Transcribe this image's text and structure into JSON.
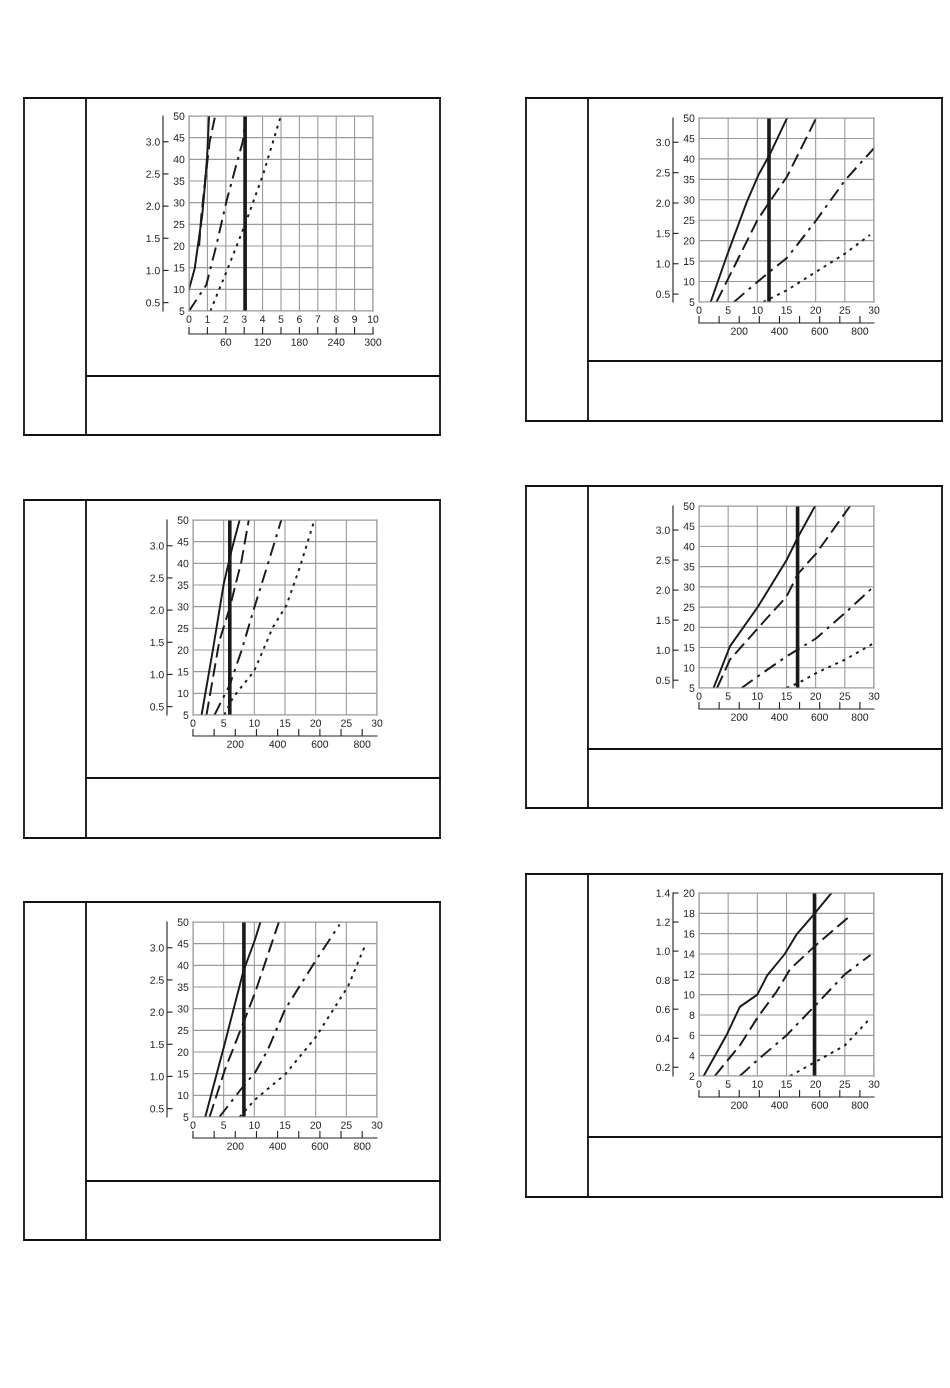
{
  "chart_data": [
    {
      "type": "line",
      "xlim": [
        0,
        10
      ],
      "xticks": [
        0,
        1,
        2,
        3,
        4,
        5,
        6,
        7,
        8,
        9,
        10
      ],
      "ylim": [
        5,
        50
      ],
      "yticks": [
        5,
        10,
        15,
        20,
        25,
        30,
        35,
        40,
        45,
        50
      ],
      "x2lim": [
        0,
        300
      ],
      "x2ticks": [
        {
          "value": 0,
          "label": null
        },
        {
          "value": 30,
          "label": null
        },
        60,
        {
          "value": 90,
          "label": null
        },
        120,
        {
          "value": 150,
          "label": null
        },
        180,
        {
          "value": 210,
          "label": null
        },
        240,
        {
          "value": 270,
          "label": null
        },
        300
      ],
      "y2lim": [
        0.37,
        3.4
      ],
      "y2ticks": [
        {
          "value": 0.5,
          "label": "0.5"
        },
        {
          "value": 1,
          "label": "1.0"
        },
        {
          "value": 1.5,
          "label": "1.5"
        },
        {
          "value": 2,
          "label": "2.0"
        },
        {
          "value": 2.5,
          "label": "2.5"
        },
        {
          "value": 3,
          "label": "3.0"
        }
      ],
      "grid": true,
      "marker": "none",
      "series": [
        {
          "color": "#1a1a1a",
          "line_style": "solid",
          "x": [
            0,
            0.31,
            0.54,
            0.72,
            0.85,
            0.99,
            1.09
          ],
          "values": [
            10,
            14.8,
            21.8,
            27.2,
            33.3,
            41,
            50
          ]
        },
        {
          "color": "#1a1a1a",
          "line_style": "dashed",
          "x": [
            0.55,
            0.67,
            0.85,
            1.12,
            1.4
          ],
          "values": [
            20,
            27,
            34,
            44,
            49.6
          ]
        },
        {
          "color": "#1a1a1a",
          "line_style": "dashdot",
          "x": [
            0,
            0.94,
            1.49,
            2.03,
            2.57,
            2.93,
            3.08
          ],
          "values": [
            5,
            11,
            20.2,
            30.2,
            38.7,
            44.2,
            49.6
          ]
        },
        {
          "color": "#1a1a1a",
          "line_style": "dotted",
          "x": [
            1.16,
            2.03,
            3.03,
            4.02,
            4.96
          ],
          "values": [
            5,
            14,
            24.8,
            36.4,
            49.6
          ]
        }
      ],
      "ref_lines": [
        {
          "axis": "x",
          "value": 3.05,
          "color": "#1a1a1a"
        }
      ]
    },
    {
      "type": "line",
      "xlim": [
        0,
        30
      ],
      "xticks": [
        0,
        5,
        10,
        15,
        20,
        25,
        30
      ],
      "ylim": [
        5,
        50
      ],
      "yticks": [
        5,
        10,
        15,
        20,
        25,
        30,
        35,
        40,
        45,
        50
      ],
      "x2lim": [
        0,
        870
      ],
      "x2ticks": [
        {
          "value": 0,
          "label": null
        },
        {
          "value": 100,
          "label": null
        },
        200,
        {
          "value": 300,
          "label": null
        },
        400,
        {
          "value": 500,
          "label": null
        },
        600,
        {
          "value": 700,
          "label": null
        },
        800
      ],
      "y2lim": [
        0.37,
        3.4
      ],
      "y2ticks": [
        {
          "value": 0.5,
          "label": "0.5"
        },
        {
          "value": 1,
          "label": "1.0"
        },
        {
          "value": 1.5,
          "label": "1.5"
        },
        {
          "value": 2,
          "label": "2.0"
        },
        {
          "value": 2.5,
          "label": "2.5"
        },
        {
          "value": 3,
          "label": "3.0"
        }
      ],
      "grid": true,
      "marker": "none",
      "series": [
        {
          "color": "#1a1a1a",
          "line_style": "solid",
          "x": [
            2.0,
            4.7,
            8.2,
            10.2,
            12.1,
            15.1
          ],
          "values": [
            5,
            16,
            29.5,
            36.1,
            41,
            50
          ]
        },
        {
          "color": "#1a1a1a",
          "line_style": "dashed",
          "x": [
            3.0,
            10,
            12.1,
            15.1,
            20.1
          ],
          "values": [
            5,
            25,
            29.5,
            35.7,
            50
          ]
        },
        {
          "color": "#1a1a1a",
          "line_style": "dashdot",
          "x": [
            6.0,
            10,
            12.1,
            15.1,
            20.1,
            25.1,
            30
          ],
          "values": [
            5,
            9.9,
            12.4,
            15.8,
            25,
            34.9,
            42.6
          ]
        },
        {
          "color": "#1a1a1a",
          "line_style": "dotted",
          "x": [
            11,
            15.1,
            20.1,
            25.1,
            29.3
          ],
          "values": [
            5,
            7.9,
            12.4,
            16.9,
            21.4
          ]
        }
      ],
      "ref_lines": [
        {
          "axis": "x",
          "value": 12.0,
          "color": "#1a1a1a"
        }
      ]
    },
    {
      "type": "line",
      "xlim": [
        0,
        30
      ],
      "xticks": [
        0,
        5,
        10,
        15,
        20,
        25,
        30
      ],
      "ylim": [
        5,
        50
      ],
      "yticks": [
        5,
        10,
        15,
        20,
        25,
        30,
        35,
        40,
        45,
        50
      ],
      "x2lim": [
        0,
        870
      ],
      "x2ticks": [
        {
          "value": 0,
          "label": null
        },
        {
          "value": 100,
          "label": null
        },
        200,
        {
          "value": 300,
          "label": null
        },
        400,
        {
          "value": 500,
          "label": null
        },
        600,
        {
          "value": 700,
          "label": null
        },
        800
      ],
      "y2lim": [
        0.37,
        3.4
      ],
      "y2ticks": [
        {
          "value": 0.5,
          "label": "0.5"
        },
        {
          "value": 1,
          "label": "1.0"
        },
        {
          "value": 1.5,
          "label": "1.5"
        },
        {
          "value": 2,
          "label": "2.0"
        },
        {
          "value": 2.5,
          "label": "2.5"
        },
        {
          "value": 3,
          "label": "3.0"
        }
      ],
      "grid": true,
      "marker": "none",
      "series": [
        {
          "color": "#1a1a1a",
          "line_style": "solid",
          "x": [
            1.4,
            3.3,
            5.0,
            6.25,
            7.6
          ],
          "values": [
            5,
            20.5,
            35.2,
            42.8,
            50
          ]
        },
        {
          "color": "#1a1a1a",
          "line_style": "dashed",
          "x": [
            2.2,
            4.3,
            6,
            7.9,
            9.1
          ],
          "values": [
            5,
            22.1,
            29.8,
            40.5,
            50
          ]
        },
        {
          "color": "#1a1a1a",
          "line_style": "dashdot",
          "x": [
            3.5,
            6,
            7.9,
            10,
            12.2,
            14.4
          ],
          "values": [
            5,
            12,
            19.8,
            29.8,
            39.8,
            50
          ]
        },
        {
          "color": "#1a1a1a",
          "line_style": "dotted",
          "x": [
            5.1,
            6.5,
            10,
            13,
            15.2,
            17.4,
            19.8
          ],
          "values": [
            5,
            9,
            15.2,
            25.2,
            30.2,
            39,
            50
          ]
        }
      ],
      "ref_lines": [
        {
          "axis": "x",
          "value": 6.0,
          "color": "#1a1a1a"
        }
      ]
    },
    {
      "type": "line",
      "xlim": [
        0,
        30
      ],
      "xticks": [
        0,
        5,
        10,
        15,
        20,
        25,
        30
      ],
      "ylim": [
        5,
        50
      ],
      "yticks": [
        5,
        10,
        15,
        20,
        25,
        30,
        35,
        40,
        45,
        50
      ],
      "x2lim": [
        0,
        870
      ],
      "x2ticks": [
        {
          "value": 0,
          "label": null
        },
        {
          "value": 100,
          "label": null
        },
        200,
        {
          "value": 300,
          "label": null
        },
        400,
        {
          "value": 500,
          "label": null
        },
        600,
        {
          "value": 700,
          "label": null
        },
        800
      ],
      "y2lim": [
        0.37,
        3.4
      ],
      "y2ticks": [
        {
          "value": 0.5,
          "label": "0.5"
        },
        {
          "value": 1,
          "label": "1.0"
        },
        {
          "value": 1.5,
          "label": "1.5"
        },
        {
          "value": 2,
          "label": "2.0"
        },
        {
          "value": 2.5,
          "label": "2.5"
        },
        {
          "value": 3,
          "label": "3.0"
        }
      ],
      "grid": true,
      "marker": "none",
      "series": [
        {
          "color": "#1a1a1a",
          "line_style": "solid",
          "x": [
            2.5,
            5.3,
            10.1,
            15,
            17,
            19.9
          ],
          "values": [
            5,
            15.3,
            25.1,
            36.6,
            42.4,
            50
          ]
        },
        {
          "color": "#1a1a1a",
          "line_style": "dashed",
          "x": [
            3.1,
            5.3,
            10.1,
            15,
            17,
            20.1,
            25.9
          ],
          "values": [
            5,
            12,
            19.8,
            27.6,
            33.3,
            38.3,
            50
          ]
        },
        {
          "color": "#1a1a1a",
          "line_style": "dashdot",
          "x": [
            7.3,
            10.1,
            15,
            20.1,
            25,
            29.6
          ],
          "values": [
            5,
            7.9,
            12.8,
            17.3,
            23.5,
            29.6
          ]
        },
        {
          "color": "#1a1a1a",
          "line_style": "dotted",
          "x": [
            15,
            17,
            20.1,
            25,
            30
          ],
          "values": [
            5,
            6.2,
            8.7,
            12,
            16.1
          ]
        }
      ],
      "ref_lines": [
        {
          "axis": "x",
          "value": 16.9,
          "color": "#1a1a1a"
        }
      ]
    },
    {
      "type": "line",
      "xlim": [
        0,
        30
      ],
      "xticks": [
        0,
        5,
        10,
        15,
        20,
        25,
        30
      ],
      "ylim": [
        5,
        50
      ],
      "yticks": [
        5,
        10,
        15,
        20,
        25,
        30,
        35,
        40,
        45,
        50
      ],
      "x2lim": [
        0,
        870
      ],
      "x2ticks": [
        {
          "value": 0,
          "label": null
        },
        {
          "value": 100,
          "label": null
        },
        200,
        {
          "value": 300,
          "label": null
        },
        400,
        {
          "value": 500,
          "label": null
        },
        600,
        {
          "value": 700,
          "label": null
        },
        800
      ],
      "y2lim": [
        0.37,
        3.4
      ],
      "y2ticks": [
        {
          "value": 0.5,
          "label": "0.5"
        },
        {
          "value": 1,
          "label": "1.0"
        },
        {
          "value": 1.5,
          "label": "1.5"
        },
        {
          "value": 2,
          "label": "2.0"
        },
        {
          "value": 2.5,
          "label": "2.5"
        },
        {
          "value": 3,
          "label": "3.0"
        }
      ],
      "grid": true,
      "marker": "none",
      "series": [
        {
          "color": "#1a1a1a",
          "line_style": "solid",
          "x": [
            2.0,
            5.2,
            8.2,
            10.1,
            11.0
          ],
          "values": [
            5,
            22.1,
            38.6,
            45.9,
            50
          ]
        },
        {
          "color": "#1a1a1a",
          "line_style": "dashed",
          "x": [
            2.7,
            5.2,
            8.2,
            10.1,
            14
          ],
          "values": [
            5,
            15.9,
            26.7,
            33.6,
            50
          ]
        },
        {
          "color": "#1a1a1a",
          "line_style": "dashdot",
          "x": [
            4.3,
            8.2,
            10.1,
            12.2,
            15,
            20.1,
            23.9
          ],
          "values": [
            5,
            12.1,
            15.2,
            20.5,
            29.8,
            41.3,
            49.4
          ]
        },
        {
          "color": "#1a1a1a",
          "line_style": "dotted",
          "x": [
            7.6,
            10.1,
            15,
            20.1,
            25.3,
            28
          ],
          "values": [
            5,
            9,
            14.8,
            23.6,
            35.2,
            44.4
          ]
        }
      ],
      "ref_lines": [
        {
          "axis": "x",
          "value": 8.3,
          "color": "#1a1a1a"
        }
      ]
    },
    {
      "type": "line",
      "xlim": [
        0,
        30
      ],
      "xticks": [
        0,
        5,
        10,
        15,
        20,
        25,
        30
      ],
      "ylim": [
        2,
        20
      ],
      "yticks": [
        2,
        4,
        6,
        8,
        10,
        12,
        14,
        16,
        18,
        20
      ],
      "x2lim": [
        0,
        870
      ],
      "x2ticks": [
        {
          "value": 0,
          "label": null
        },
        {
          "value": 100,
          "label": null
        },
        200,
        {
          "value": 300,
          "label": null
        },
        400,
        {
          "value": 500,
          "label": null
        },
        600,
        {
          "value": 700,
          "label": null
        },
        800
      ],
      "y2lim": [
        0.14,
        1.4
      ],
      "y2ticks": [
        0.2,
        0.4,
        0.6,
        0.8,
        {
          "value": 1,
          "label": "1.0"
        },
        1.2,
        1.4
      ],
      "grid": true,
      "marker": "none",
      "series": [
        {
          "color": "#1a1a1a",
          "line_style": "solid",
          "x": [
            0.8,
            4.7,
            7,
            10,
            11.7,
            14.7,
            16.7,
            19.7,
            22.7
          ],
          "values": [
            2,
            6,
            8.8,
            10,
            11.9,
            14,
            15.9,
            17.9,
            20
          ]
        },
        {
          "color": "#1a1a1a",
          "line_style": "dashed",
          "x": [
            2.7,
            7,
            10.1,
            13.3,
            15.6,
            19.7,
            26.2
          ],
          "values": [
            2,
            5,
            7.8,
            10.3,
            12.5,
            14.7,
            17.9
          ]
        },
        {
          "color": "#1a1a1a",
          "line_style": "dashdot",
          "x": [
            7,
            10.1,
            15,
            19.7,
            25,
            29.4
          ],
          "values": [
            2,
            3.6,
            6,
            8.8,
            12,
            13.9
          ]
        },
        {
          "color": "#1a1a1a",
          "line_style": "dotted",
          "x": [
            15.6,
            19.7,
            25,
            29.4
          ],
          "values": [
            2,
            3.3,
            5,
            7.7
          ]
        }
      ],
      "ref_lines": [
        {
          "axis": "x",
          "value": 19.8,
          "color": "#1a1a1a"
        }
      ]
    }
  ]
}
